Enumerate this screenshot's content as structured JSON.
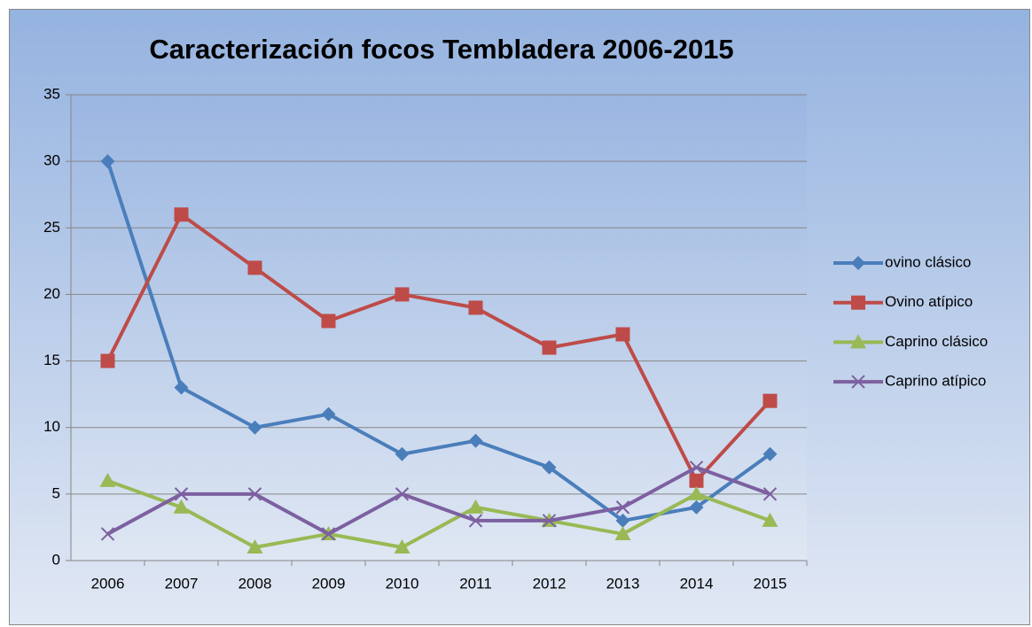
{
  "chart_data": {
    "type": "line",
    "title": "Caracterización focos Tembladera 2006-2015",
    "categories": [
      "2006",
      "2007",
      "2008",
      "2009",
      "2010",
      "2011",
      "2012",
      "2013",
      "2014",
      "2015"
    ],
    "series": [
      {
        "name": "ovino clásico",
        "color": "#4a7ebb",
        "marker": "diamond",
        "values": [
          30,
          13,
          10,
          11,
          8,
          9,
          7,
          3,
          4,
          8
        ]
      },
      {
        "name": "Ovino atípico",
        "color": "#be4b48",
        "marker": "square",
        "values": [
          15,
          26,
          22,
          18,
          20,
          19,
          16,
          17,
          6,
          12
        ]
      },
      {
        "name": "Caprino clásico",
        "color": "#98b954",
        "marker": "triangle",
        "values": [
          6,
          4,
          1,
          2,
          1,
          4,
          3,
          2,
          5,
          3
        ]
      },
      {
        "name": "Caprino atípico",
        "color": "#7d60a0",
        "marker": "x",
        "values": [
          2,
          5,
          5,
          2,
          5,
          3,
          3,
          4,
          7,
          5
        ]
      }
    ],
    "ylim": [
      0,
      35
    ],
    "yticks": [
      0,
      5,
      10,
      15,
      20,
      25,
      30,
      35
    ],
    "grid": true,
    "legend": "right"
  }
}
